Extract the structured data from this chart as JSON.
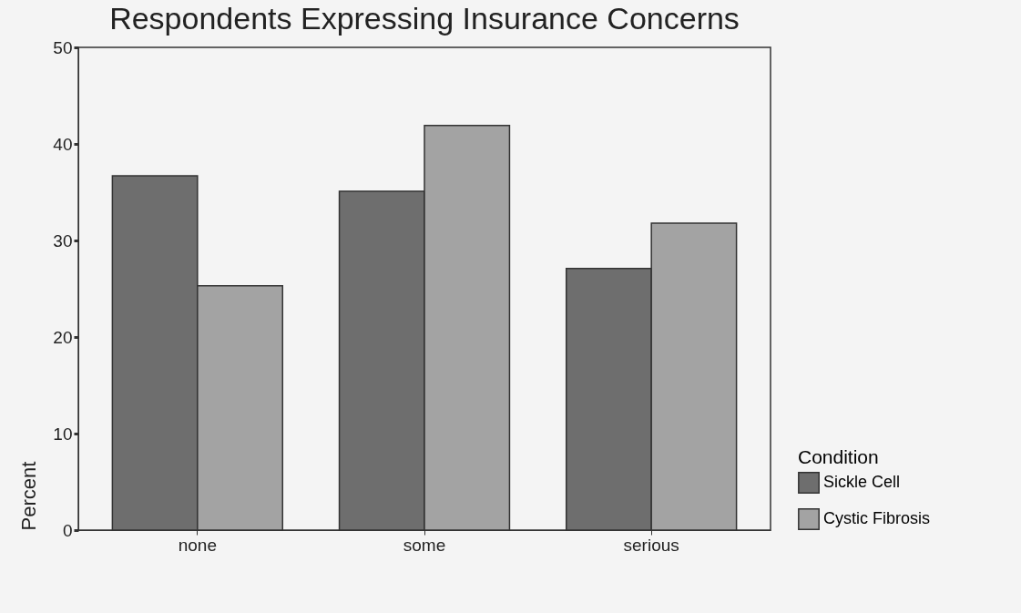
{
  "chart_data": {
    "type": "bar",
    "title": "Respondents Expressing Insurance Concerns",
    "ylabel": "Percent",
    "legend_title": "Condition",
    "categories": [
      "none",
      "some",
      "serious"
    ],
    "series": [
      {
        "name": "Sickle Cell",
        "color": "#6e6e6e",
        "values": [
          36.7,
          35.1,
          27.1
        ]
      },
      {
        "name": "Cystic Fibrosis",
        "color": "#a3a3a3",
        "values": [
          25.3,
          41.9,
          31.8
        ]
      }
    ],
    "ylim": [
      0,
      50
    ],
    "yticks": [
      0,
      10,
      20,
      30,
      40,
      50
    ],
    "grid": false,
    "legend": "bottom right"
  }
}
